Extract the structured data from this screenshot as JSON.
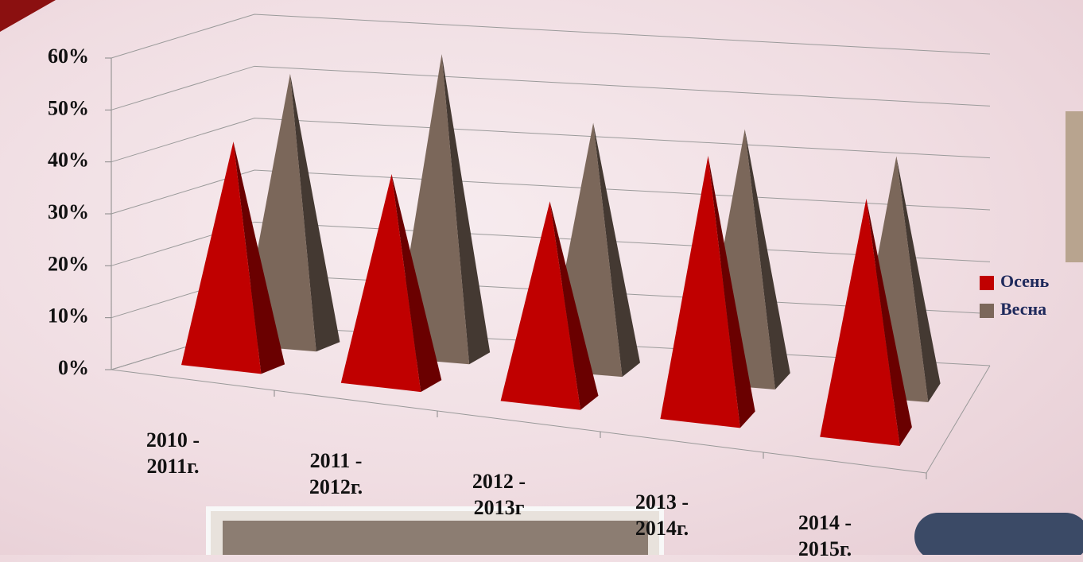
{
  "chart_data": {
    "type": "pyramid3d",
    "categories": [
      "2010 -\n2011г.",
      "2011 -\n2012г.",
      "2012 -\n2013г",
      "2013 -\n2014г.",
      "2014 -\n2015г."
    ],
    "series": [
      {
        "name": "Осень",
        "color": "#c00000",
        "values": [
          43,
          40,
          38,
          50,
          45
        ]
      },
      {
        "name": "Весна",
        "color": "#7b675a",
        "values": [
          52,
          58,
          47,
          48,
          45
        ]
      }
    ],
    "ylim": [
      0,
      60
    ],
    "yticks": [
      {
        "value": 0,
        "label": "0%"
      },
      {
        "value": 10,
        "label": "10%"
      },
      {
        "value": 20,
        "label": "20%"
      },
      {
        "value": 30,
        "label": "30%"
      },
      {
        "value": 40,
        "label": "40%"
      },
      {
        "value": 50,
        "label": "50%"
      },
      {
        "value": 60,
        "label": "60%"
      }
    ],
    "grid": true,
    "legend": "right"
  }
}
